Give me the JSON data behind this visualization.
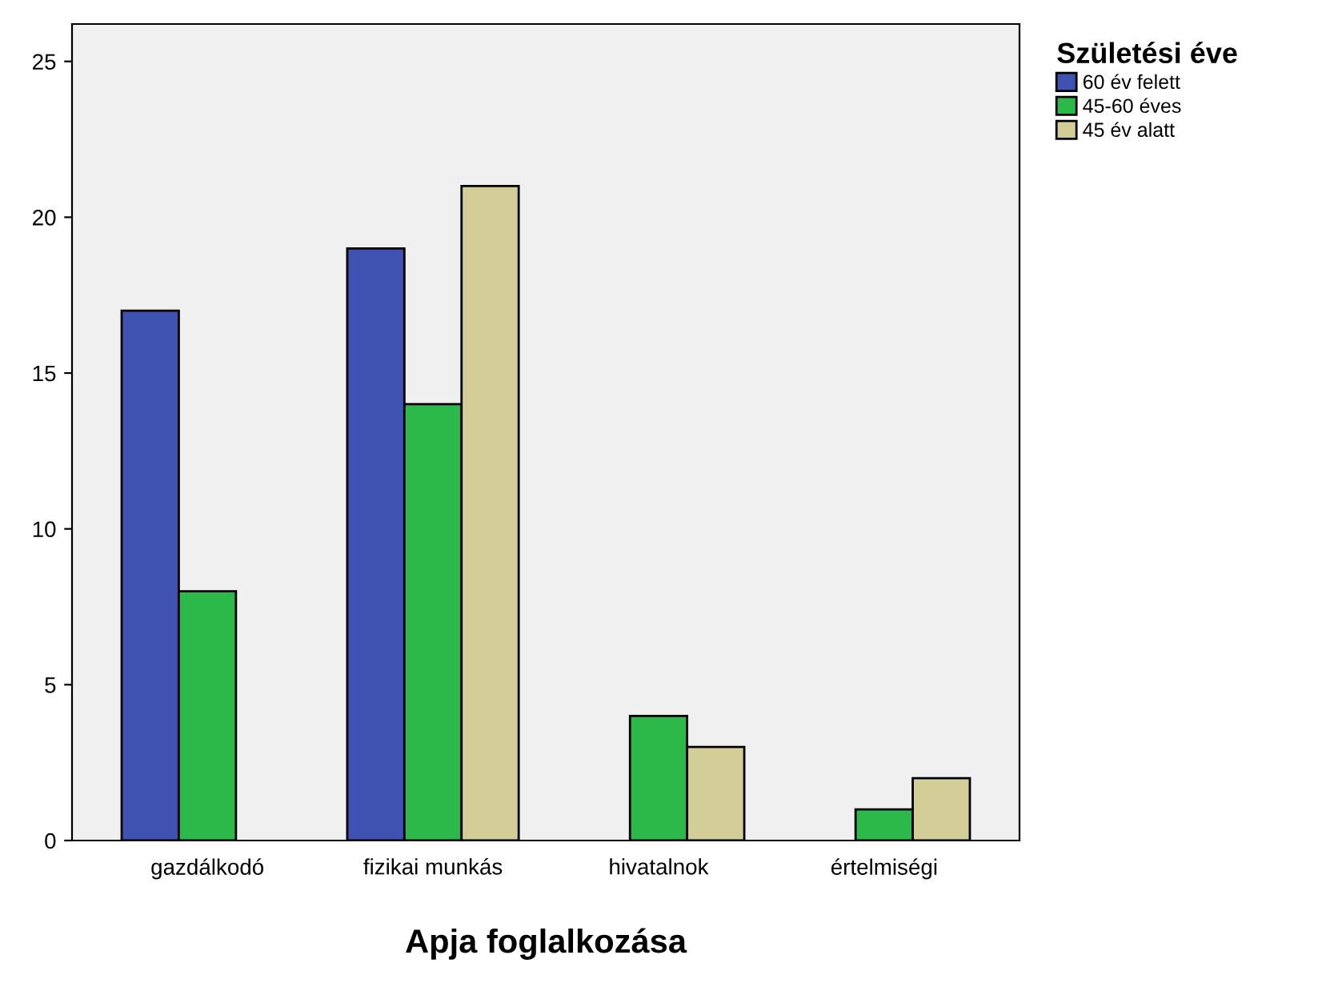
{
  "chart_data": {
    "type": "bar",
    "xlabel": "Apja foglalkozása",
    "legend_title": "Születési éve",
    "categories": [
      "gazdálkodó",
      "fizikai munkás",
      "hivatalnok",
      "értelmiségi"
    ],
    "series": [
      {
        "name": "60 év felett",
        "color": "#3f51b1",
        "values": [
          17,
          19,
          null,
          null
        ]
      },
      {
        "name": "45-60 éves",
        "color": "#2db84a",
        "values": [
          8,
          14,
          4,
          1
        ]
      },
      {
        "name": "45 év alatt",
        "color": "#d3ce97",
        "values": [
          null,
          21,
          3,
          2
        ]
      }
    ],
    "ylim": [
      0,
      26.2
    ],
    "yticks": [
      0,
      5,
      10,
      15,
      20,
      25
    ],
    "grid": false,
    "legend": "top right"
  }
}
